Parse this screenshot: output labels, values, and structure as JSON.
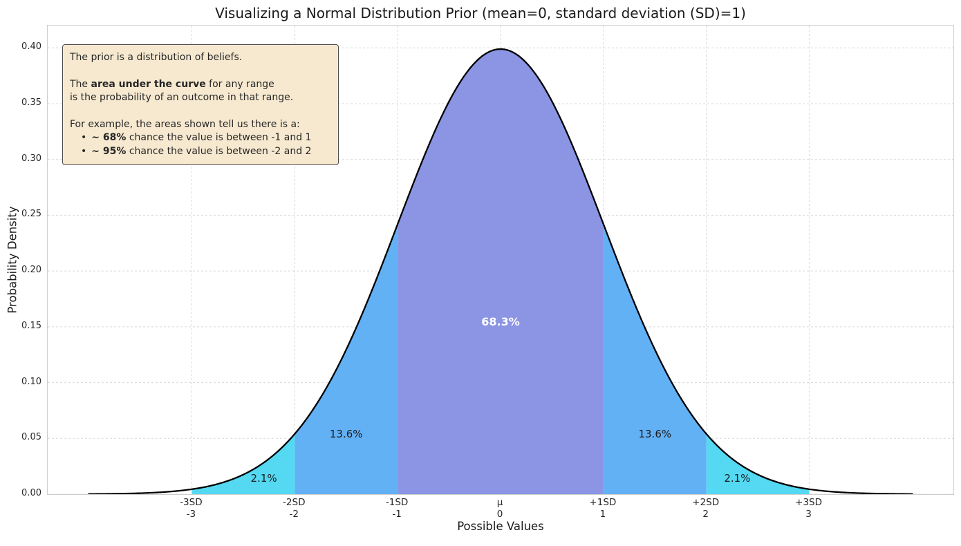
{
  "annotation": {
    "line1": "The prior is a distribution of beliefs.",
    "line2_pre": "The ",
    "line2_bold": "area under the curve",
    "line2_post": " for any range",
    "line3": "is the probability of an outcome in that range.",
    "line4": "For example, the areas shown tell us there is a:",
    "bullet_char": "•",
    "bullet1_bold": "~ 68%",
    "bullet1_rest": " chance the value is between -1 and 1",
    "bullet2_bold": "~ 95%",
    "bullet2_rest": " chance the value is between -2 and 2"
  },
  "chart_data": {
    "type": "area",
    "distribution": "normal",
    "title": "Visualizing a Normal Distribution Prior (mean=0, standard deviation (SD)=1)",
    "xlabel": "Possible Values",
    "ylabel": "Probability Density",
    "mean": 0,
    "sd": 1,
    "peak_density": 0.3989,
    "xlim": [
      -4.4,
      4.4
    ],
    "ylim": [
      0,
      0.42
    ],
    "curve_domain": [
      -4,
      4
    ],
    "curve_color": "#000000",
    "grid": true,
    "grid_color": "#d8d8d8",
    "background": "#ffffff",
    "yticks": [
      {
        "value": 0.0,
        "label": "0.00"
      },
      {
        "value": 0.05,
        "label": "0.05"
      },
      {
        "value": 0.1,
        "label": "0.10"
      },
      {
        "value": 0.15,
        "label": "0.15"
      },
      {
        "value": 0.2,
        "label": "0.20"
      },
      {
        "value": 0.25,
        "label": "0.25"
      },
      {
        "value": 0.3,
        "label": "0.30"
      },
      {
        "value": 0.35,
        "label": "0.35"
      },
      {
        "value": 0.4,
        "label": "0.40"
      }
    ],
    "xticks": [
      {
        "x": -3,
        "line1": "-3SD",
        "line2": "-3"
      },
      {
        "x": -2,
        "line1": "-2SD",
        "line2": "-2"
      },
      {
        "x": -1,
        "line1": "-1SD",
        "line2": "-1"
      },
      {
        "x": 0,
        "line1": "μ",
        "line2": "0"
      },
      {
        "x": 1,
        "line1": "+1SD",
        "line2": "1"
      },
      {
        "x": 2,
        "line1": "+2SD",
        "line2": "2"
      },
      {
        "x": 3,
        "line1": "+3SD",
        "line2": "3"
      }
    ],
    "regions": [
      {
        "name": "within-1sd",
        "from": -1,
        "to": 1,
        "color": "#8b95e4",
        "label": "68.3%",
        "label_x": 0,
        "label_y": 0.154,
        "label_color": "#ffffff",
        "bold": true
      },
      {
        "name": "left-1to2sd",
        "from": -2,
        "to": -1,
        "color": "#63b1f5",
        "label": "13.6%",
        "label_x": -1.5,
        "label_y": 0.0535,
        "label_color": "#1a1a1a",
        "bold": false
      },
      {
        "name": "right-1to2sd",
        "from": 1,
        "to": 2,
        "color": "#63b1f5",
        "label": "13.6%",
        "label_x": 1.5,
        "label_y": 0.0535,
        "label_color": "#1a1a1a",
        "bold": false
      },
      {
        "name": "left-2to3sd",
        "from": -3,
        "to": -2,
        "color": "#55d9f2",
        "label": "2.1%",
        "label_x": -2.3,
        "label_y": 0.014,
        "label_color": "#1a1a1a",
        "bold": false
      },
      {
        "name": "right-2to3sd",
        "from": 2,
        "to": 3,
        "color": "#55d9f2",
        "label": "2.1%",
        "label_x": 2.3,
        "label_y": 0.014,
        "label_color": "#1a1a1a",
        "bold": false
      }
    ]
  }
}
